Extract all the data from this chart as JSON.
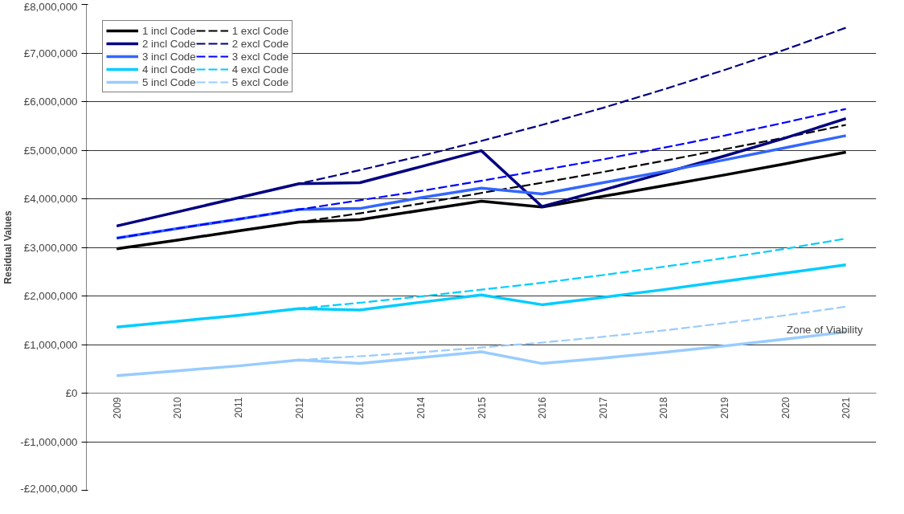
{
  "chart_data": {
    "type": "line",
    "ylabel": "Residual Values",
    "categories": [
      "2009",
      "2010",
      "2011",
      "2012",
      "2013",
      "2014",
      "2015",
      "2016",
      "2017",
      "2018",
      "2019",
      "2020",
      "2021"
    ],
    "series": [
      {
        "name": "1 incl Code",
        "color": "#000000",
        "line_style": "solid",
        "values": [
          2970000,
          3150000,
          3340000,
          3520000,
          3570000,
          3760000,
          3950000,
          3830000,
          4050000,
          4270000,
          4490000,
          4720000,
          4960000
        ]
      },
      {
        "name": "1 excl Code",
        "color": "#000000",
        "line_style": "dashed",
        "values": [
          2970000,
          3150000,
          3340000,
          3520000,
          3700000,
          3900000,
          4120000,
          4330000,
          4550000,
          4780000,
          5020000,
          5260000,
          5520000
        ]
      },
      {
        "name": "2 incl Code",
        "color": "#000080",
        "line_style": "solid",
        "values": [
          3440000,
          3730000,
          4020000,
          4310000,
          4330000,
          4660000,
          4990000,
          3840000,
          4180000,
          4530000,
          4880000,
          5250000,
          5650000
        ]
      },
      {
        "name": "2 excl Code",
        "color": "#000080",
        "line_style": "dashed",
        "values": [
          3440000,
          3730000,
          4020000,
          4310000,
          4590000,
          4880000,
          5190000,
          5520000,
          5870000,
          6250000,
          6650000,
          7070000,
          7520000
        ]
      },
      {
        "name": "3 incl Code",
        "color": "#3366ff",
        "line_style": "solid",
        "values": [
          3190000,
          3390000,
          3580000,
          3780000,
          3800000,
          4020000,
          4220000,
          4100000,
          4330000,
          4560000,
          4800000,
          5050000,
          5300000
        ]
      },
      {
        "name": "3 excl Code",
        "color": "#0000ff",
        "line_style": "dashed",
        "values": [
          3190000,
          3390000,
          3580000,
          3780000,
          3970000,
          4160000,
          4370000,
          4590000,
          4810000,
          5050000,
          5300000,
          5570000,
          5850000
        ]
      },
      {
        "name": "4 incl Code",
        "color": "#00ccff",
        "line_style": "solid",
        "values": [
          1360000,
          1480000,
          1600000,
          1740000,
          1710000,
          1870000,
          2020000,
          1820000,
          1970000,
          2130000,
          2300000,
          2470000,
          2640000
        ]
      },
      {
        "name": "4 excl Code",
        "color": "#00ccff",
        "line_style": "dashed",
        "values": [
          1360000,
          1480000,
          1600000,
          1740000,
          1860000,
          1990000,
          2130000,
          2270000,
          2430000,
          2600000,
          2780000,
          2970000,
          3180000
        ]
      },
      {
        "name": "5 incl Code",
        "color": "#99ccff",
        "line_style": "solid",
        "values": [
          360000,
          460000,
          560000,
          680000,
          610000,
          730000,
          850000,
          610000,
          720000,
          840000,
          970000,
          1110000,
          1260000
        ]
      },
      {
        "name": "5 excl Code",
        "color": "#99ccff",
        "line_style": "dashed",
        "values": [
          360000,
          460000,
          560000,
          680000,
          760000,
          840000,
          940000,
          1040000,
          1160000,
          1290000,
          1440000,
          1600000,
          1780000
        ]
      }
    ],
    "ylim": [
      -2000000,
      8000000
    ],
    "yticks": [
      {
        "value": -2000000,
        "label": "-£2,000,000"
      },
      {
        "value": -1000000,
        "label": "-£1,000,000"
      },
      {
        "value": 0,
        "label": "£0"
      },
      {
        "value": 1000000,
        "label": "£1,000,000"
      },
      {
        "value": 2000000,
        "label": "£2,000,000"
      },
      {
        "value": 3000000,
        "label": "£3,000,000"
      },
      {
        "value": 4000000,
        "label": "£4,000,000"
      },
      {
        "value": 5000000,
        "label": "£5,000,000"
      },
      {
        "value": 6000000,
        "label": "£6,000,000"
      },
      {
        "value": 7000000,
        "label": "£7,000,000"
      },
      {
        "value": 8000000,
        "label": "£8,000,000"
      }
    ],
    "grid": "y",
    "legend": "top left",
    "marker": "none",
    "annotations": [
      "Zone of Viability"
    ]
  }
}
